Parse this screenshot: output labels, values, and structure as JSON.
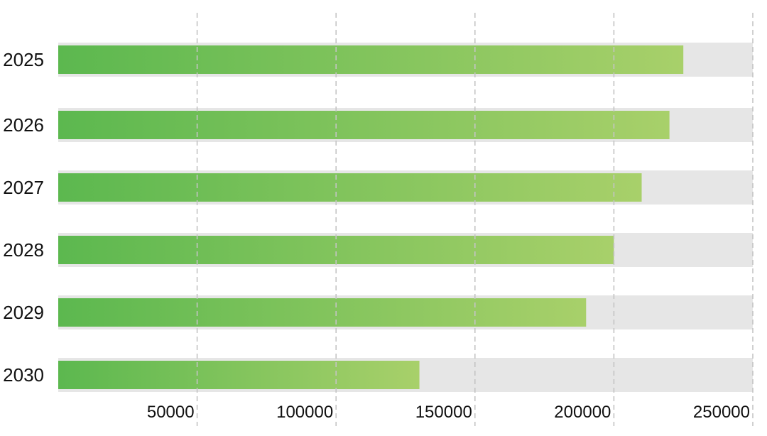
{
  "chart_data": {
    "type": "bar",
    "orientation": "horizontal",
    "categories": [
      "2025",
      "2026",
      "2027",
      "2028",
      "2029",
      "2030"
    ],
    "series": [
      {
        "values": [
          225000,
          220000,
          210000,
          200000,
          190000,
          130000
        ]
      }
    ],
    "background_track_max": 250000,
    "x_ticks": [
      50000,
      100000,
      150000,
      200000,
      250000
    ],
    "x_tick_labels": [
      "50000",
      "100000",
      "150000",
      "200000",
      "250000"
    ],
    "xlim": [
      0,
      250000
    ],
    "grid": {
      "vertical": true,
      "style": "dashed"
    },
    "legend": "none",
    "title": "",
    "xlabel": "",
    "ylabel": "",
    "colors": {
      "bar_gradient_start": "#5cb84f",
      "bar_gradient_end": "#a8d06a",
      "track": "#e6e6e6",
      "grid": "#c4c4c4",
      "text": "#111111"
    }
  }
}
